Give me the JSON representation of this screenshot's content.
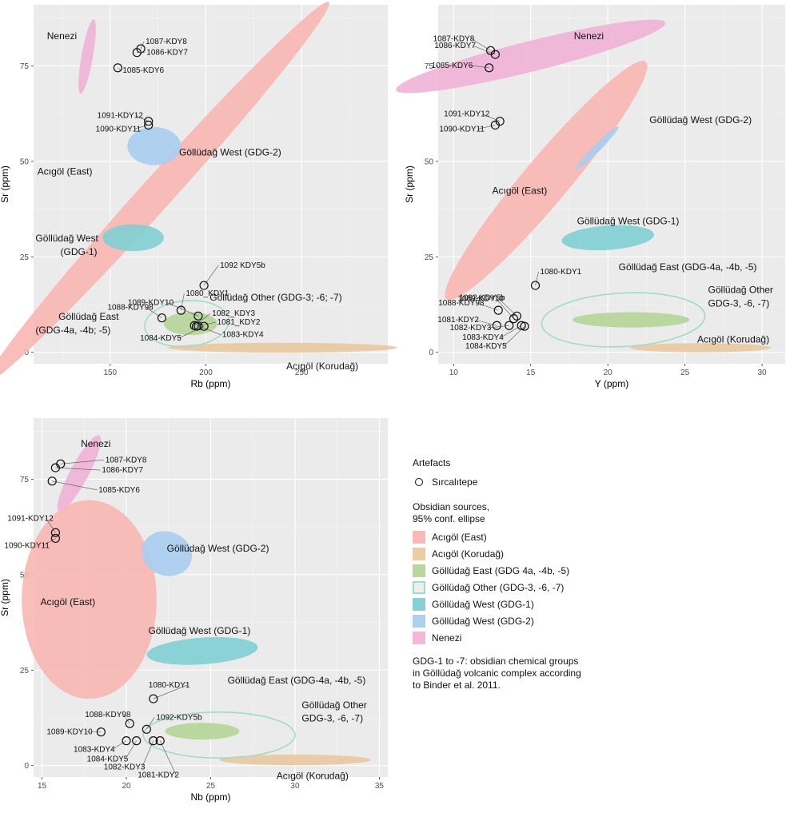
{
  "legend": {
    "artefacts_title": "Artefacts",
    "artefact_label": "Sırcalıtepe",
    "sources_title_line1": "Obsidian sources,",
    "sources_title_line2": "95% conf. ellipse",
    "items": [
      {
        "label": "Acıgöl (East)",
        "color": "#f8b6b2",
        "outline": false
      },
      {
        "label": "Acıgöl (Korudağ)",
        "color": "#e9c9a0",
        "outline": false
      },
      {
        "label": "Göllüdağ East (GDG 4a, -4b, -5)",
        "color": "#b5d598",
        "outline": false
      },
      {
        "label": "Göllüdağ Other (GDG-3, -6, -7)",
        "color": "#9fdcc6",
        "outline": true
      },
      {
        "label": "Göllüdağ West (GDG-1)",
        "color": "#7fcfd4",
        "outline": false
      },
      {
        "label": "Göllüdağ West (GDG-2)",
        "color": "#a8cdef",
        "outline": false
      },
      {
        "label": "Nenezi",
        "color": "#f1b2d6",
        "outline": false
      }
    ],
    "note_lines": [
      "GDG-1 to -7: obsidian chemical groups",
      "in Göllüdağ volcanic complex according",
      "to Binder et al. 2011."
    ]
  },
  "chart_data": [
    {
      "type": "scatter",
      "xlabel": "Rb (ppm)",
      "ylabel": "Sr (ppm)",
      "xlim": [
        110,
        295
      ],
      "ylim": [
        -3,
        91
      ],
      "xticks": [
        150,
        200,
        250
      ],
      "yticks": [
        0,
        25,
        50,
        75
      ],
      "grid": true,
      "points": [
        {
          "label": "1087-KDY8",
          "x": 166,
          "y": 79.5
        },
        {
          "label": "1086-KDY7",
          "x": 164,
          "y": 78.5
        },
        {
          "label": "1085-KDY6",
          "x": 154,
          "y": 74.5
        },
        {
          "label": "1091-KDY12",
          "x": 170,
          "y": 60.5
        },
        {
          "label": "1090-KDY11",
          "x": 170,
          "y": 59.5
        },
        {
          "label": "1092 KDY5b",
          "x": 199,
          "y": 17.5
        },
        {
          "label": "1080_KDY1",
          "x": 187,
          "y": 11
        },
        {
          "label": "1088-KDY98",
          "x": 177,
          "y": 9
        },
        {
          "label": "1089-KDY10",
          "x": 196,
          "y": 9.5
        },
        {
          "label": "1082_KDY3",
          "x": 194,
          "y": 7
        },
        {
          "label": "1081_KDY2",
          "x": 195,
          "y": 6.8
        },
        {
          "label": "1083-KDY4",
          "x": 196,
          "y": 6.9
        },
        {
          "label": "1084-KDY5",
          "x": 199,
          "y": 6.8
        }
      ],
      "ellipses": [
        {
          "source": "Acıgöl (East)",
          "cx": 175,
          "cy": 42,
          "rx": 82,
          "ry": 7,
          "angle": -48
        },
        {
          "source": "Acıgöl (Korudağ)",
          "cx": 240,
          "cy": 1.2,
          "rx": 60,
          "ry": 1.3,
          "angle": 0
        },
        {
          "source": "Göllüdağ East (GDG 4a, -4b, -5)",
          "cx": 192,
          "cy": 7.5,
          "rx": 14,
          "ry": 3,
          "angle": 0
        },
        {
          "source": "Göllüdağ Other (GDG-3, -6, -7)",
          "cx": 190,
          "cy": 7.5,
          "rx": 22,
          "ry": 6,
          "angle": -5
        },
        {
          "source": "Göllüdağ West (GDG-1)",
          "cx": 162,
          "cy": 30,
          "rx": 16,
          "ry": 3.5,
          "angle": 0
        },
        {
          "source": "Göllüdağ West (GDG-2)",
          "cx": 173,
          "cy": 54,
          "rx": 14,
          "ry": 5,
          "angle": 0
        },
        {
          "source": "Nenezi",
          "cx": 138,
          "cy": 77.5,
          "rx": 10,
          "ry": 2.5,
          "angle": -80
        }
      ],
      "annotations": [
        {
          "text": "Nenezi",
          "x": 117,
          "y": 82
        },
        {
          "text": "Göllüdağ West (GDG-2)",
          "x": 186,
          "y": 51.5
        },
        {
          "text": "Acıgöl (East)",
          "x": 112,
          "y": 46.5
        },
        {
          "text": "Göllüdağ West",
          "x": 111,
          "y": 29
        },
        {
          "text": "(GDG-1)",
          "x": 124,
          "y": 25.5
        },
        {
          "text": "Göllüdağ Other (GDG-3; -6; -7)",
          "x": 202,
          "y": 13.5
        },
        {
          "text": "Göllüdağ East",
          "x": 123,
          "y": 8.5
        },
        {
          "text": "(GDG-4a, -4b; -5)",
          "x": 111,
          "y": 5
        },
        {
          "text": "Acıgöl (Korudağ)",
          "x": 242,
          "y": -4.5
        }
      ]
    },
    {
      "type": "scatter",
      "xlabel": "Y (ppm)",
      "ylabel": "Sr (ppm)",
      "xlim": [
        9,
        31.5
      ],
      "ylim": [
        -3,
        91
      ],
      "xticks": [
        10,
        15,
        20,
        25,
        30
      ],
      "yticks": [
        0,
        25,
        50,
        75
      ],
      "grid": true,
      "points": [
        {
          "label": "1087-KDY8",
          "x": 12.4,
          "y": 79
        },
        {
          "label": "1086-KDY7",
          "x": 12.7,
          "y": 78
        },
        {
          "label": "1085-KDY6",
          "x": 12.3,
          "y": 74.5
        },
        {
          "label": "1091-KDY12",
          "x": 13.0,
          "y": 60.5
        },
        {
          "label": "1090-KDY11",
          "x": 12.7,
          "y": 59.5
        },
        {
          "label": "1080-KDY1",
          "x": 15.3,
          "y": 17.5
        },
        {
          "label": "1092-KDY5b",
          "x": 14.1,
          "y": 9.5
        },
        {
          "label": "1089-KDY10",
          "x": 13.9,
          "y": 8.8
        },
        {
          "label": "1088-KDY98",
          "x": 12.9,
          "y": 11
        },
        {
          "label": "1081-KDY2",
          "x": 12.8,
          "y": 7
        },
        {
          "label": "1082-KDY3",
          "x": 13.6,
          "y": 7
        },
        {
          "label": "1083-KDY4",
          "x": 14.4,
          "y": 7
        },
        {
          "label": "1084-KDY5",
          "x": 14.6,
          "y": 6.8
        }
      ],
      "ellipses": [
        {
          "source": "Acıgöl (East)",
          "cx": 16,
          "cy": 45,
          "rx": 15,
          "ry": 5,
          "angle": -50
        },
        {
          "source": "Acıgöl (Korudağ)",
          "cx": 26,
          "cy": 1.2,
          "rx": 4.6,
          "ry": 1.2,
          "angle": 0
        },
        {
          "source": "Göllüdağ East (GDG 4a, -4b, -5)",
          "cx": 21.5,
          "cy": 8.5,
          "rx": 3.8,
          "ry": 2,
          "angle": 0
        },
        {
          "source": "Göllüdağ Other (GDG-3, -6, -7)",
          "cx": 21,
          "cy": 8.5,
          "rx": 5.3,
          "ry": 7,
          "angle": -3
        },
        {
          "source": "Göllüdağ West (GDG-1)",
          "cx": 20,
          "cy": 30,
          "rx": 3,
          "ry": 3.2,
          "angle": -4
        },
        {
          "source": "Göllüdağ West (GDG-2)",
          "cx": 19.3,
          "cy": 53.5,
          "rx": 2.7,
          "ry": 0.8,
          "angle": -45
        },
        {
          "source": "Nenezi",
          "cx": 15,
          "cy": 77.5,
          "rx": 9,
          "ry": 4,
          "angle": -14
        }
      ],
      "annotations": [
        {
          "text": "Nenezi",
          "x": 17.8,
          "y": 82
        },
        {
          "text": "Göllüdağ West (GDG-2)",
          "x": 22.7,
          "y": 60
        },
        {
          "text": "Acıgöl (East)",
          "x": 12.5,
          "y": 41.5
        },
        {
          "text": "Göllüdağ West (GDG-1)",
          "x": 18,
          "y": 33.5
        },
        {
          "text": "Göllüdağ East (GDG-4a, -4b, -5)",
          "x": 20.7,
          "y": 21.5
        },
        {
          "text": "Göllüdağ Other",
          "x": 26.5,
          "y": 15.5
        },
        {
          "text": "GDG-3, -6, -7)",
          "x": 26.5,
          "y": 12
        },
        {
          "text": "Acıgöl (Korudağ)",
          "x": 25.8,
          "y": 2.5
        }
      ]
    },
    {
      "type": "scatter",
      "xlabel": "Nb (ppm)",
      "ylabel": "Sr (ppm)",
      "xlim": [
        14.5,
        35.5
      ],
      "ylim": [
        -3,
        91
      ],
      "xticks": [
        15,
        20,
        25,
        30,
        35
      ],
      "yticks": [
        0,
        25,
        50,
        75
      ],
      "grid": true,
      "points": [
        {
          "label": "1087-KDY8",
          "x": 16.1,
          "y": 79
        },
        {
          "label": "1086-KDY7",
          "x": 15.8,
          "y": 78
        },
        {
          "label": "1085-KDY6",
          "x": 15.6,
          "y": 74.5
        },
        {
          "label": "1091-KDY12",
          "x": 15.8,
          "y": 61
        },
        {
          "label": "1090-KDY11",
          "x": 15.8,
          "y": 59.5
        },
        {
          "label": "1080-KDY1",
          "x": 21.6,
          "y": 17.5
        },
        {
          "label": "1092-KDY5b",
          "x": 21.2,
          "y": 9.5
        },
        {
          "label": "1088-KDY98",
          "x": 20.2,
          "y": 11
        },
        {
          "label": "1089-KDY10",
          "x": 18.5,
          "y": 8.8
        },
        {
          "label": "1083-KDY4",
          "x": 20.0,
          "y": 6.5
        },
        {
          "label": "1084-KDY5",
          "x": 20.6,
          "y": 6.5
        },
        {
          "label": "1082-KDY3",
          "x": 21.6,
          "y": 6.5
        },
        {
          "label": "1081-KDY2",
          "x": 22.0,
          "y": 6.5
        }
      ],
      "ellipses": [
        {
          "source": "Acıgöl (East)",
          "cx": 17.8,
          "cy": 43.5,
          "rx": 4,
          "ry": 26,
          "angle": 0
        },
        {
          "source": "Acıgöl (Korudağ)",
          "cx": 30,
          "cy": 1.5,
          "rx": 4.5,
          "ry": 1.4,
          "angle": 0
        },
        {
          "source": "Göllüdağ East (GDG 4a, -4b, -5)",
          "cx": 24.5,
          "cy": 9,
          "rx": 2.2,
          "ry": 2.2,
          "angle": 0
        },
        {
          "source": "Göllüdağ Other (GDG-3, -6, -7)",
          "cx": 25.5,
          "cy": 8,
          "rx": 4.5,
          "ry": 6,
          "angle": 0
        },
        {
          "source": "Göllüdağ West (GDG-1)",
          "cx": 24.5,
          "cy": 30,
          "rx": 3.3,
          "ry": 3.5,
          "angle": -4
        },
        {
          "source": "Göllüdağ West (GDG-2)",
          "cx": 22.4,
          "cy": 55.5,
          "rx": 1.6,
          "ry": 4.8,
          "angle": 20
        },
        {
          "source": "Nenezi",
          "cx": 17.2,
          "cy": 76.5,
          "rx": 5,
          "ry": 2,
          "angle": -62
        }
      ],
      "annotations": [
        {
          "text": "Nenezi",
          "x": 17.3,
          "y": 83.5
        },
        {
          "text": "Göllüdağ West (GDG-2)",
          "x": 22.4,
          "y": 56
        },
        {
          "text": "Acıgöl (East)",
          "x": 14.9,
          "y": 42
        },
        {
          "text": "Göllüdağ West (GDG-1)",
          "x": 21.3,
          "y": 34.5
        },
        {
          "text": "Göllüdağ East (GDG-4a, -4b, -5)",
          "x": 26,
          "y": 21.5
        },
        {
          "text": "Göllüdağ Other",
          "x": 30.4,
          "y": 15
        },
        {
          "text": "GDG-3, -6, -7)",
          "x": 30.4,
          "y": 11.5
        },
        {
          "text": "Acıgöl (Korudağ)",
          "x": 28.9,
          "y": -3.5
        }
      ]
    }
  ]
}
